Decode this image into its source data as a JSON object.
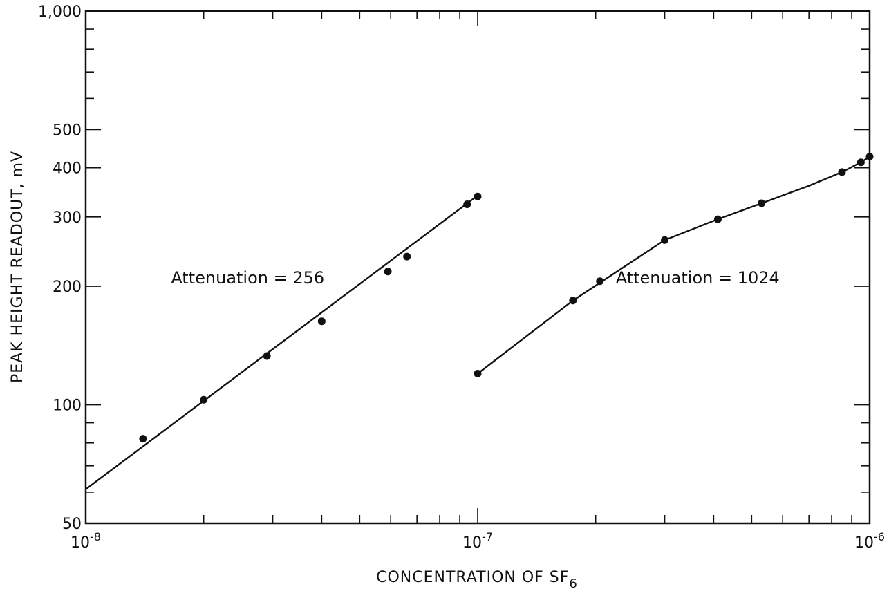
{
  "chart_data": {
    "type": "scatter",
    "title": "",
    "xlabel": "CONCENTRATION OF SF",
    "xlabel_subscript": "6",
    "ylabel": "PEAK HEIGHT READOUT, mV",
    "x_scale": "log",
    "y_scale": "log",
    "xlim": [
      1e-08,
      1e-06
    ],
    "ylim": [
      50,
      1000
    ],
    "grid": false,
    "x_ticks": [
      {
        "value": 1e-08,
        "base": "10",
        "exp": "-8"
      },
      {
        "value": 1e-07,
        "base": "10",
        "exp": "-7"
      },
      {
        "value": 1e-06,
        "base": "10",
        "exp": "-6"
      }
    ],
    "y_ticks": [
      {
        "value": 50,
        "label": "50"
      },
      {
        "value": 100,
        "label": "100"
      },
      {
        "value": 200,
        "label": "200"
      },
      {
        "value": 300,
        "label": "300"
      },
      {
        "value": 400,
        "label": "400"
      },
      {
        "value": 500,
        "label": "500"
      },
      {
        "value": 1000,
        "label": "1,000"
      }
    ],
    "series": [
      {
        "name": "Attenuation = 256",
        "points": [
          {
            "x": 1.4e-08,
            "y": 82
          },
          {
            "x": 2e-08,
            "y": 103
          },
          {
            "x": 2.9e-08,
            "y": 133
          },
          {
            "x": 4e-08,
            "y": 163
          },
          {
            "x": 5.9e-08,
            "y": 218
          },
          {
            "x": 6.6e-08,
            "y": 238
          },
          {
            "x": 9.4e-08,
            "y": 323
          },
          {
            "x": 1e-07,
            "y": 338
          }
        ],
        "fit": [
          {
            "x": 1e-08,
            "y": 61
          },
          {
            "x": 1e-07,
            "y": 340
          }
        ]
      },
      {
        "name": "Attenuation = 1024",
        "points": [
          {
            "x": 1e-07,
            "y": 120
          },
          {
            "x": 1.75e-07,
            "y": 184
          },
          {
            "x": 2.05e-07,
            "y": 206
          },
          {
            "x": 3e-07,
            "y": 262
          },
          {
            "x": 4.1e-07,
            "y": 296
          },
          {
            "x": 5.3e-07,
            "y": 325
          },
          {
            "x": 8.5e-07,
            "y": 390
          },
          {
            "x": 9.5e-07,
            "y": 413
          },
          {
            "x": 1e-06,
            "y": 427
          }
        ],
        "fit": [
          {
            "x": 1e-07,
            "y": 120
          },
          {
            "x": 1.75e-07,
            "y": 184
          },
          {
            "x": 3e-07,
            "y": 262
          },
          {
            "x": 4.1e-07,
            "y": 296
          },
          {
            "x": 5.3e-07,
            "y": 325
          },
          {
            "x": 7e-07,
            "y": 360
          },
          {
            "x": 8.5e-07,
            "y": 390
          },
          {
            "x": 9.5e-07,
            "y": 413
          },
          {
            "x": 1e-06,
            "y": 427
          }
        ]
      }
    ],
    "annotations": [
      {
        "text": "Attenuation = 256",
        "series": 0
      },
      {
        "text": "Attenuation = 1024",
        "series": 1
      }
    ]
  }
}
